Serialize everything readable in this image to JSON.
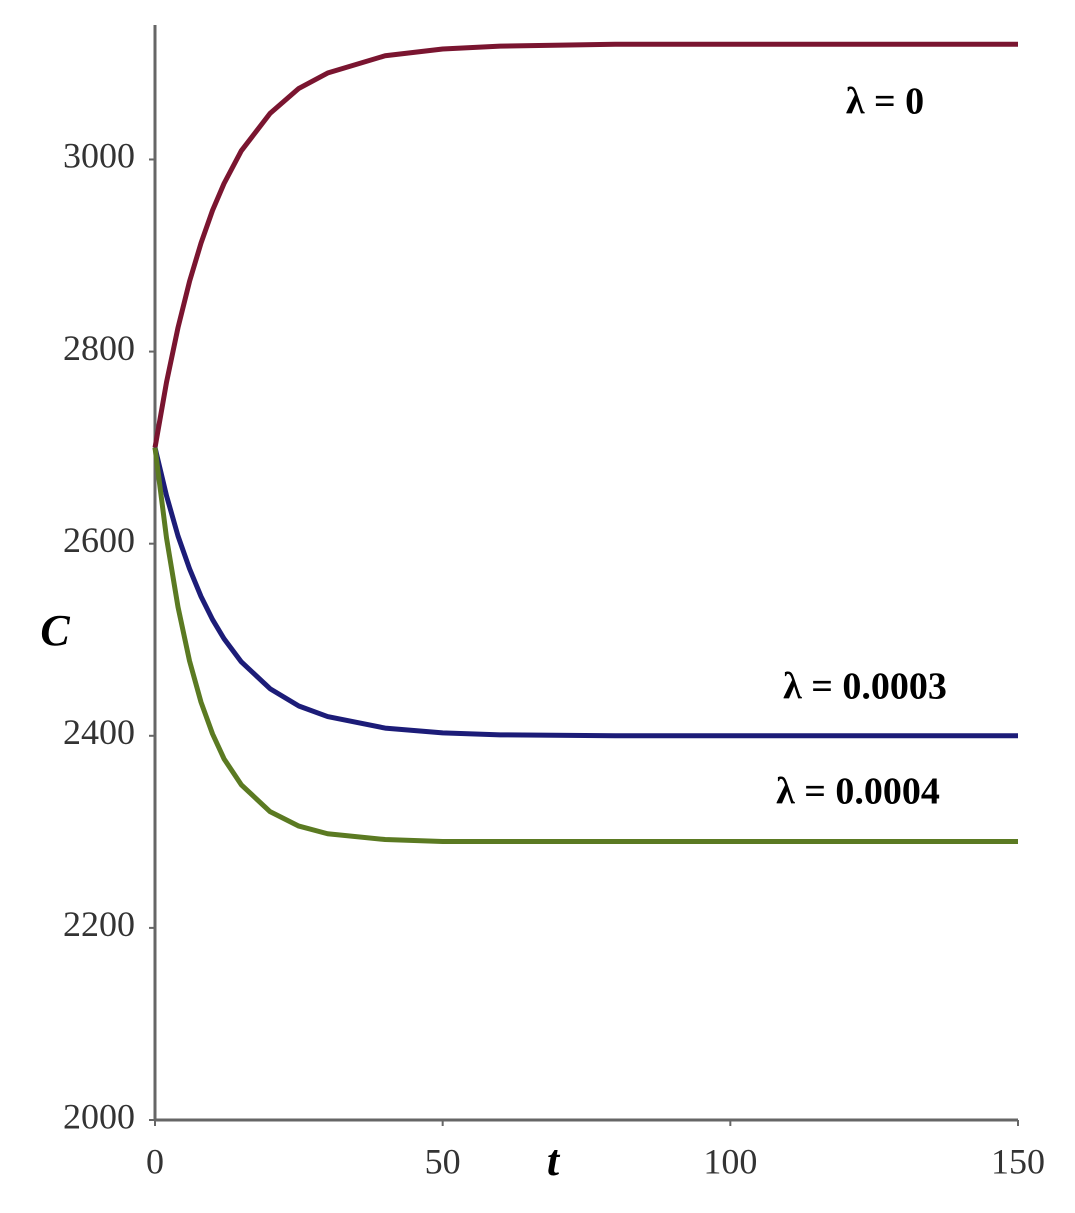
{
  "chart_data": {
    "type": "line",
    "x_label": "t",
    "y_label": "C",
    "x": [
      0,
      2,
      4,
      6,
      8,
      10,
      12,
      15,
      20,
      25,
      30,
      40,
      50,
      60,
      80,
      100,
      150
    ],
    "series": [
      {
        "name": "λ = 0",
        "color": "#7a1530",
        "values": [
          2700,
          2768,
          2825,
          2873,
          2913,
          2947,
          2975,
          3009,
          3048,
          3074,
          3090,
          3108,
          3115,
          3118,
          3120,
          3120,
          3120
        ]
      },
      {
        "name": "λ = 0.0003",
        "color": "#1c1c78",
        "values": [
          2700,
          2650,
          2608,
          2574,
          2545,
          2521,
          2501,
          2477,
          2449,
          2431,
          2420,
          2408,
          2403,
          2401,
          2400,
          2400,
          2400
        ]
      },
      {
        "name": "λ = 0.0004",
        "color": "#5b7a22",
        "values": [
          2700,
          2606,
          2534,
          2478,
          2435,
          2402,
          2376,
          2349,
          2321,
          2306,
          2298,
          2292,
          2290,
          2290,
          2290,
          2290,
          2290
        ]
      }
    ],
    "xlim": [
      0,
      150
    ],
    "ylim": [
      2000,
      3140
    ],
    "xticks": [
      0,
      50,
      100,
      150
    ],
    "yticks": [
      2000,
      2200,
      2400,
      2600,
      2800,
      3000
    ],
    "grid": false
  }
}
